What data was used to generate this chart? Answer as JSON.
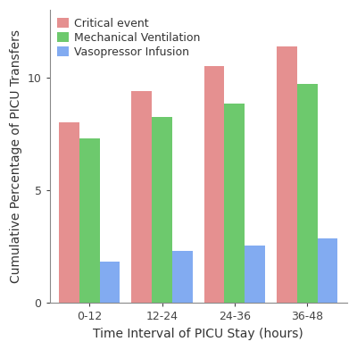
{
  "categories": [
    "0-12",
    "12-24",
    "24-36",
    "36-48"
  ],
  "series": [
    {
      "label": "Critical event",
      "values": [
        8.0,
        9.4,
        10.5,
        11.4
      ],
      "color": "#E07878"
    },
    {
      "label": "Mechanical Ventilation",
      "values": [
        7.3,
        8.25,
        8.85,
        9.7
      ],
      "color": "#4DBD4D"
    },
    {
      "label": "Vasopressor Infusion",
      "values": [
        1.85,
        2.3,
        2.55,
        2.85
      ],
      "color": "#6699EE"
    }
  ],
  "xlabel": "Time Interval of PICU Stay (hours)",
  "ylabel": "Cumulative Percentage of PICU Transfers",
  "ylim": [
    0,
    13
  ],
  "yticks": [
    0,
    5,
    10
  ],
  "background_color": "#ffffff",
  "bar_width": 0.28,
  "axis_fontsize": 10,
  "tick_fontsize": 9,
  "legend_fontsize": 9
}
